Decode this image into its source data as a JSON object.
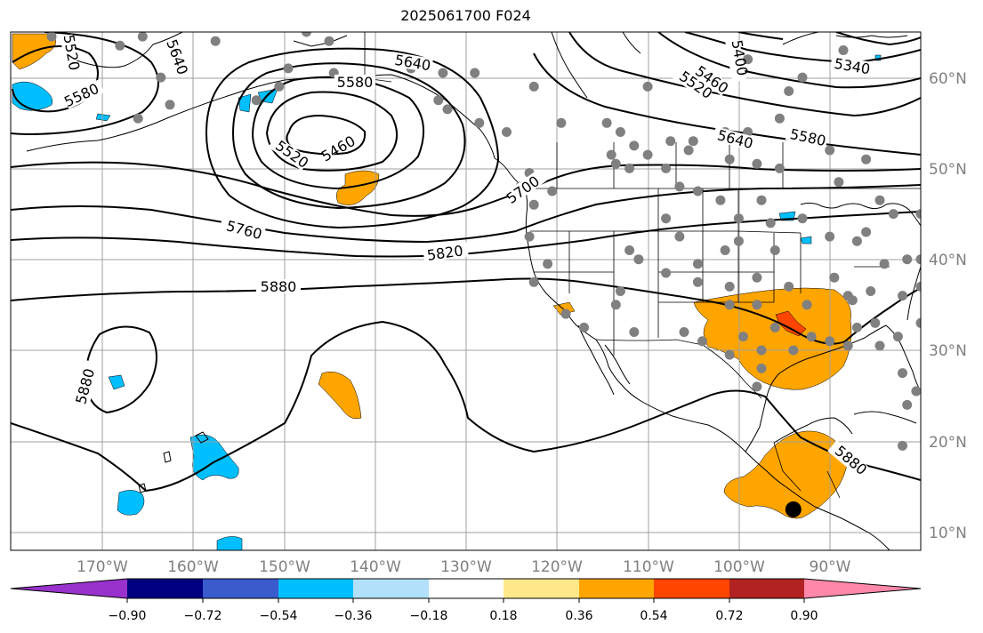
{
  "title": "2025061700 F024",
  "colors": {
    "grid": "#a0a0a0",
    "contour": "#000000",
    "station_dot": "#808080",
    "marker": "#000000",
    "cb_lo5": "#9932cc",
    "cb_lo4": "#000080",
    "cb_lo3": "#3a5bcc",
    "cb_lo2": "#00bfff",
    "cb_lo1": "#b0e0fa",
    "cb_mid": "#ffffff",
    "cb_hi1": "#ffe88a",
    "cb_hi2": "#ffa500",
    "cb_hi3": "#ff4500",
    "cb_hi4": "#b22222",
    "cb_hi5": "#ff88aa"
  },
  "axes": {
    "longitude_labels": [
      "170°W",
      "160°W",
      "150°W",
      "140°W",
      "130°W",
      "120°W",
      "110°W",
      "100°W",
      "90°W"
    ],
    "latitude_labels": [
      "60°N",
      "50°N",
      "40°N",
      "30°N",
      "20°N",
      "10°N"
    ]
  },
  "contour_labels": {
    "c5520a": "5520",
    "c5640a": "5640",
    "c5580a": "5580",
    "c5640b": "5640",
    "c5580b": "5580",
    "c5460a": "5460",
    "c5520b": "5520",
    "c5700": "5700",
    "c5760": "5760",
    "c5820": "5820",
    "c5880a": "5880",
    "c5880b": "5880",
    "c5400": "5400",
    "c5460b": "5460",
    "c5520c": "5520",
    "c5340": "5340",
    "c5640c": "5640",
    "c5580c": "5580",
    "c5880c": "5880"
  },
  "colorbar": {
    "tick_labels": [
      "−0.90",
      "−0.72",
      "−0.54",
      "−0.36",
      "−0.18",
      "0.18",
      "0.36",
      "0.54",
      "0.72",
      "0.90"
    ]
  },
  "chart_data": {
    "type": "map",
    "title": "2025061700 F024",
    "lon_range": [
      -180,
      -80
    ],
    "lat_range": [
      8,
      65
    ],
    "contour_levels": [
      5340,
      5400,
      5460,
      5520,
      5580,
      5640,
      5700,
      5760,
      5820,
      5880
    ],
    "colorbar_bounds": [
      -0.9,
      -0.72,
      -0.54,
      -0.36,
      -0.18,
      0.18,
      0.36,
      0.54,
      0.72,
      0.9
    ],
    "colorbar_extend": "both",
    "large_marker": {
      "lon": -94,
      "lat": 12.5
    },
    "station_points": [
      [
        -175.5,
        64.5
      ],
      [
        -165.5,
        64.5
      ],
      [
        -157.5,
        64
      ],
      [
        -147.5,
        65
      ],
      [
        -145,
        64
      ],
      [
        -144.5,
        60.5
      ],
      [
        -149.5,
        61
      ],
      [
        -168,
        63.5
      ],
      [
        -163.5,
        60
      ],
      [
        -166,
        55.5
      ],
      [
        -162.5,
        57
      ],
      [
        -153,
        57.5
      ],
      [
        -150.5,
        59
      ],
      [
        -136,
        61
      ],
      [
        -132.5,
        60.5
      ],
      [
        -129,
        60.5
      ],
      [
        -133,
        57.5
      ],
      [
        -132,
        56.5
      ],
      [
        -128.5,
        55
      ],
      [
        -125.5,
        54
      ],
      [
        -122.5,
        59
      ],
      [
        -119.5,
        55
      ],
      [
        -123,
        49.5
      ],
      [
        -124,
        48
      ],
      [
        -122.5,
        46
      ],
      [
        -120.5,
        47.5
      ],
      [
        -123,
        42.5
      ],
      [
        -121,
        39.5
      ],
      [
        -122.5,
        37.5
      ],
      [
        -119,
        34
      ],
      [
        -117,
        32.5
      ],
      [
        -113.5,
        35
      ],
      [
        -113,
        36.5
      ],
      [
        -111.5,
        32
      ],
      [
        -112,
        41
      ],
      [
        -111,
        40
      ],
      [
        -108,
        38.5
      ],
      [
        -104.5,
        39.5
      ],
      [
        -106.5,
        42.5
      ],
      [
        -108,
        44.5
      ],
      [
        -104.5,
        47.5
      ],
      [
        -106.5,
        48
      ],
      [
        -108,
        50
      ],
      [
        -110,
        51.5
      ],
      [
        -112,
        50
      ],
      [
        -113.5,
        50.5
      ],
      [
        -113,
        54
      ],
      [
        -114,
        51.5
      ],
      [
        -111.5,
        52.5
      ],
      [
        -114.5,
        55
      ],
      [
        -107.5,
        53
      ],
      [
        -105.5,
        52
      ],
      [
        -105,
        53
      ],
      [
        -101,
        51
      ],
      [
        -98,
        50.5
      ],
      [
        -95.5,
        50
      ],
      [
        -101.5,
        54
      ],
      [
        -99,
        54
      ],
      [
        -95.5,
        55.5
      ],
      [
        -94.5,
        58.5
      ],
      [
        -110,
        59
      ],
      [
        -104,
        59
      ],
      [
        -99,
        62
      ],
      [
        -88.5,
        63
      ],
      [
        -93,
        60
      ],
      [
        -90,
        52
      ],
      [
        -86,
        51
      ],
      [
        -89,
        48.5
      ],
      [
        -86,
        43
      ],
      [
        -83,
        45
      ],
      [
        -84.5,
        46.5
      ],
      [
        -80,
        45
      ],
      [
        -84,
        39.5
      ],
      [
        -81.5,
        40
      ],
      [
        -87,
        42
      ],
      [
        -90,
        42.5
      ],
      [
        -93,
        44.5
      ],
      [
        -96.5,
        44
      ],
      [
        -100,
        44.5
      ],
      [
        -102,
        46.5
      ],
      [
        -97.5,
        46.5
      ],
      [
        -100,
        42
      ],
      [
        -96,
        41
      ],
      [
        -98,
        38
      ],
      [
        -101.5,
        41
      ],
      [
        -104.5,
        37.5
      ],
      [
        -101,
        37
      ],
      [
        -94.5,
        37
      ],
      [
        -92.5,
        35
      ],
      [
        -98,
        35
      ],
      [
        -101,
        35
      ],
      [
        -96,
        32.5
      ],
      [
        -99.5,
        31.5
      ],
      [
        -97.5,
        28
      ],
      [
        -98,
        26
      ],
      [
        -101,
        29.5
      ],
      [
        -104,
        31
      ],
      [
        -106,
        32
      ],
      [
        -97.5,
        30
      ],
      [
        -94,
        30
      ],
      [
        -92,
        31.5
      ],
      [
        -90,
        31
      ],
      [
        -88,
        30.5
      ],
      [
        -87,
        32.5
      ],
      [
        -85,
        33
      ],
      [
        -82.5,
        31.5
      ],
      [
        -84.5,
        30.5
      ],
      [
        -82,
        27.5
      ],
      [
        -80.5,
        25.5
      ],
      [
        -81.5,
        24
      ],
      [
        -82,
        19.5
      ],
      [
        -85.5,
        36.5
      ],
      [
        -88,
        36
      ],
      [
        -89.5,
        38
      ],
      [
        -87.5,
        35.5
      ],
      [
        -82,
        36
      ],
      [
        -80,
        37
      ],
      [
        -80,
        40
      ],
      [
        -80,
        33
      ],
      [
        -79.5,
        29
      ]
    ],
    "notes_visible": "height contours in gpm; shaded anomaly field; state and country boundaries"
  }
}
